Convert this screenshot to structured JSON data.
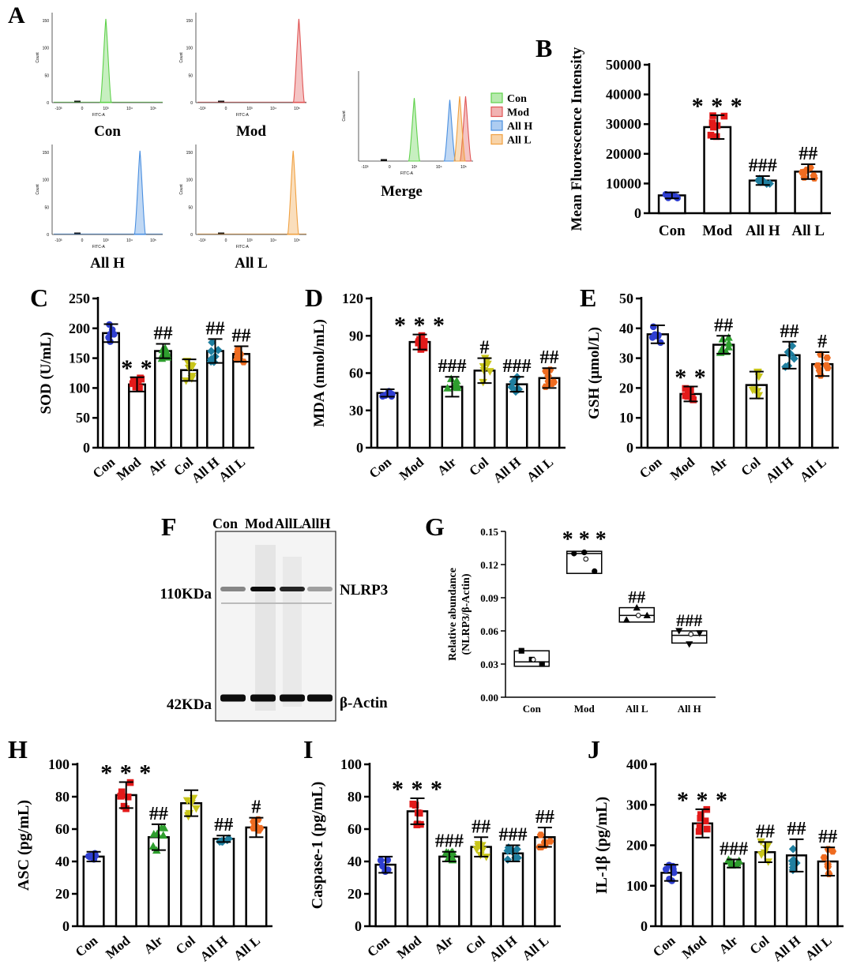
{
  "colors": {
    "Con": "#2f3fd1",
    "Mod": "#e31a1a",
    "Alr": "#2e9e2e",
    "Col": "#c8c51a",
    "All H": "#1f7fa0",
    "All L": "#ef6c21",
    "hist_Con": "#5fd14b",
    "hist_Mod": "#e05555",
    "hist_AllH": "#4a8fe0",
    "hist_AllL": "#f0a040"
  },
  "panel_A": {
    "letter": "A",
    "histograms": [
      {
        "label": "Con",
        "color_key": "hist_Con",
        "peak": 1.5,
        "ymax": 150
      },
      {
        "label": "Mod",
        "color_key": "hist_Mod",
        "peak": 4.1,
        "ymax": 150
      },
      {
        "label": "All H",
        "color_key": "hist_AllH",
        "peak": 3.3,
        "ymax": 150
      },
      {
        "label": "All L",
        "color_key": "hist_AllL",
        "peak": 3.8,
        "ymax": 150
      }
    ],
    "merge": {
      "label": "Merge",
      "peaks": [
        1.5,
        4.1,
        3.3,
        3.8
      ]
    },
    "legend": [
      "Con",
      "Mod",
      "All H",
      "All L"
    ],
    "axis_text": {
      "x_title": "FITC-A",
      "y_title": "Count",
      "y_ticks": [
        "0",
        "50",
        "100",
        "150"
      ],
      "x_ticks": [
        "-10³",
        "0",
        "10³",
        "10⁴",
        "10⁵"
      ]
    }
  },
  "chart_data": [
    {
      "panel": "B",
      "type": "bar",
      "ylabel": "Mean Fluorescence Intensity",
      "categories": [
        "Con",
        "Mod",
        "All H",
        "All L"
      ],
      "values": [
        6000,
        29000,
        11000,
        14000
      ],
      "sd": [
        1000,
        4000,
        1500,
        2500
      ],
      "ylim": [
        0,
        50000
      ],
      "yticks": [
        0,
        10000,
        20000,
        30000,
        40000,
        50000
      ],
      "sig": [
        "",
        "***",
        "###",
        "##"
      ]
    },
    {
      "panel": "C",
      "type": "bar",
      "ylabel": "SOD (U/mL)",
      "categories": [
        "Con",
        "Mod",
        "Alr",
        "Col",
        "All H",
        "All L"
      ],
      "values": [
        192,
        106,
        162,
        130,
        162,
        157
      ],
      "sd": [
        15,
        12,
        12,
        18,
        20,
        13
      ],
      "ylim": [
        0,
        250
      ],
      "yticks": [
        0,
        50,
        100,
        150,
        200,
        250
      ],
      "sig": [
        "",
        "**",
        "##",
        "",
        "##",
        "##"
      ]
    },
    {
      "panel": "D",
      "type": "bar",
      "ylabel": "MDA (nmol/mL)",
      "categories": [
        "Con",
        "Mod",
        "Alr",
        "Col",
        "All H",
        "All L"
      ],
      "values": [
        44,
        85,
        49,
        62,
        51,
        56
      ],
      "sd": [
        3,
        6,
        8,
        10,
        6,
        8
      ],
      "ylim": [
        0,
        120
      ],
      "yticks": [
        0,
        30,
        60,
        90,
        120
      ],
      "sig": [
        "",
        "***",
        "###",
        "#",
        "###",
        "##"
      ]
    },
    {
      "panel": "E",
      "type": "bar",
      "ylabel": "GSH (μmol/L)",
      "categories": [
        "Con",
        "Mod",
        "Alr",
        "Col",
        "All H",
        "All L"
      ],
      "values": [
        38,
        18,
        34.5,
        21,
        31,
        28
      ],
      "sd": [
        3,
        2.5,
        3,
        4.5,
        4.5,
        4
      ],
      "ylim": [
        0,
        50
      ],
      "yticks": [
        0,
        10,
        20,
        30,
        40,
        50
      ],
      "sig": [
        "",
        "**",
        "##",
        "",
        "##",
        "#"
      ]
    },
    {
      "panel": "H",
      "type": "bar",
      "ylabel": "ASC (pg/mL)",
      "categories": [
        "Con",
        "Mod",
        "Alr",
        "Col",
        "All H",
        "All L"
      ],
      "values": [
        43,
        81,
        55,
        76,
        54,
        61
      ],
      "sd": [
        3,
        8,
        8,
        8,
        2,
        6
      ],
      "ylim": [
        0,
        100
      ],
      "yticks": [
        0,
        20,
        40,
        60,
        80,
        100
      ],
      "sig": [
        "",
        "***",
        "##",
        "",
        "##",
        "#"
      ]
    },
    {
      "panel": "I",
      "type": "bar",
      "ylabel": "Caspase-1 (pg/mL)",
      "categories": [
        "Con",
        "Mod",
        "Alr",
        "Col",
        "All H",
        "All L"
      ],
      "values": [
        38,
        71,
        43,
        49,
        45,
        55
      ],
      "sd": [
        5,
        8,
        3,
        6,
        5,
        6
      ],
      "ylim": [
        0,
        100
      ],
      "yticks": [
        0,
        20,
        40,
        60,
        80,
        100
      ],
      "sig": [
        "",
        "***",
        "###",
        "##",
        "###",
        "##"
      ]
    },
    {
      "panel": "J",
      "type": "bar",
      "ylabel": "IL-1β (pg/mL)",
      "categories": [
        "Con",
        "Mod",
        "Alr",
        "Col",
        "All H",
        "All L"
      ],
      "values": [
        132,
        254,
        155,
        183,
        175,
        160
      ],
      "sd": [
        20,
        35,
        10,
        25,
        40,
        35
      ],
      "ylim": [
        0,
        400
      ],
      "yticks": [
        0,
        100,
        200,
        300,
        400
      ],
      "sig": [
        "",
        "***",
        "###",
        "##",
        "##",
        "##"
      ]
    },
    {
      "panel": "G",
      "type": "box",
      "ylabel": "Relative abundance (NLRP3/β-Actin)",
      "categories": [
        "Con",
        "Mod",
        "All L",
        "All H"
      ],
      "boxes": [
        {
          "q1": 0.028,
          "median": 0.032,
          "q3": 0.042,
          "mean": 0.034,
          "points": [
            0.042,
            0.034,
            0.03
          ]
        },
        {
          "q1": 0.112,
          "median": 0.13,
          "q3": 0.132,
          "mean": 0.125,
          "points": [
            0.13,
            0.131,
            0.114
          ]
        },
        {
          "q1": 0.068,
          "median": 0.074,
          "q3": 0.081,
          "mean": 0.074,
          "points": [
            0.07,
            0.081,
            0.074
          ]
        },
        {
          "q1": 0.049,
          "median": 0.056,
          "q3": 0.06,
          "mean": 0.057,
          "points": [
            0.06,
            0.048,
            0.058
          ]
        }
      ],
      "ylim": [
        0,
        0.15
      ],
      "yticks": [
        "0.00",
        "0.03",
        "0.06",
        "0.09",
        "0.12",
        "0.15"
      ],
      "sig": [
        "",
        "***",
        "##",
        "###"
      ]
    }
  ],
  "panel_F": {
    "letter": "F",
    "lanes": [
      "Con",
      "Mod",
      "AllL",
      "AllH"
    ],
    "bands": [
      {
        "label": "NLRP3",
        "size": "110KDa",
        "intensity": [
          0.45,
          0.95,
          0.85,
          0.35
        ]
      },
      {
        "label": "β-Actin",
        "size": "42KDa",
        "intensity": [
          0.95,
          0.95,
          0.95,
          0.95
        ]
      }
    ]
  }
}
